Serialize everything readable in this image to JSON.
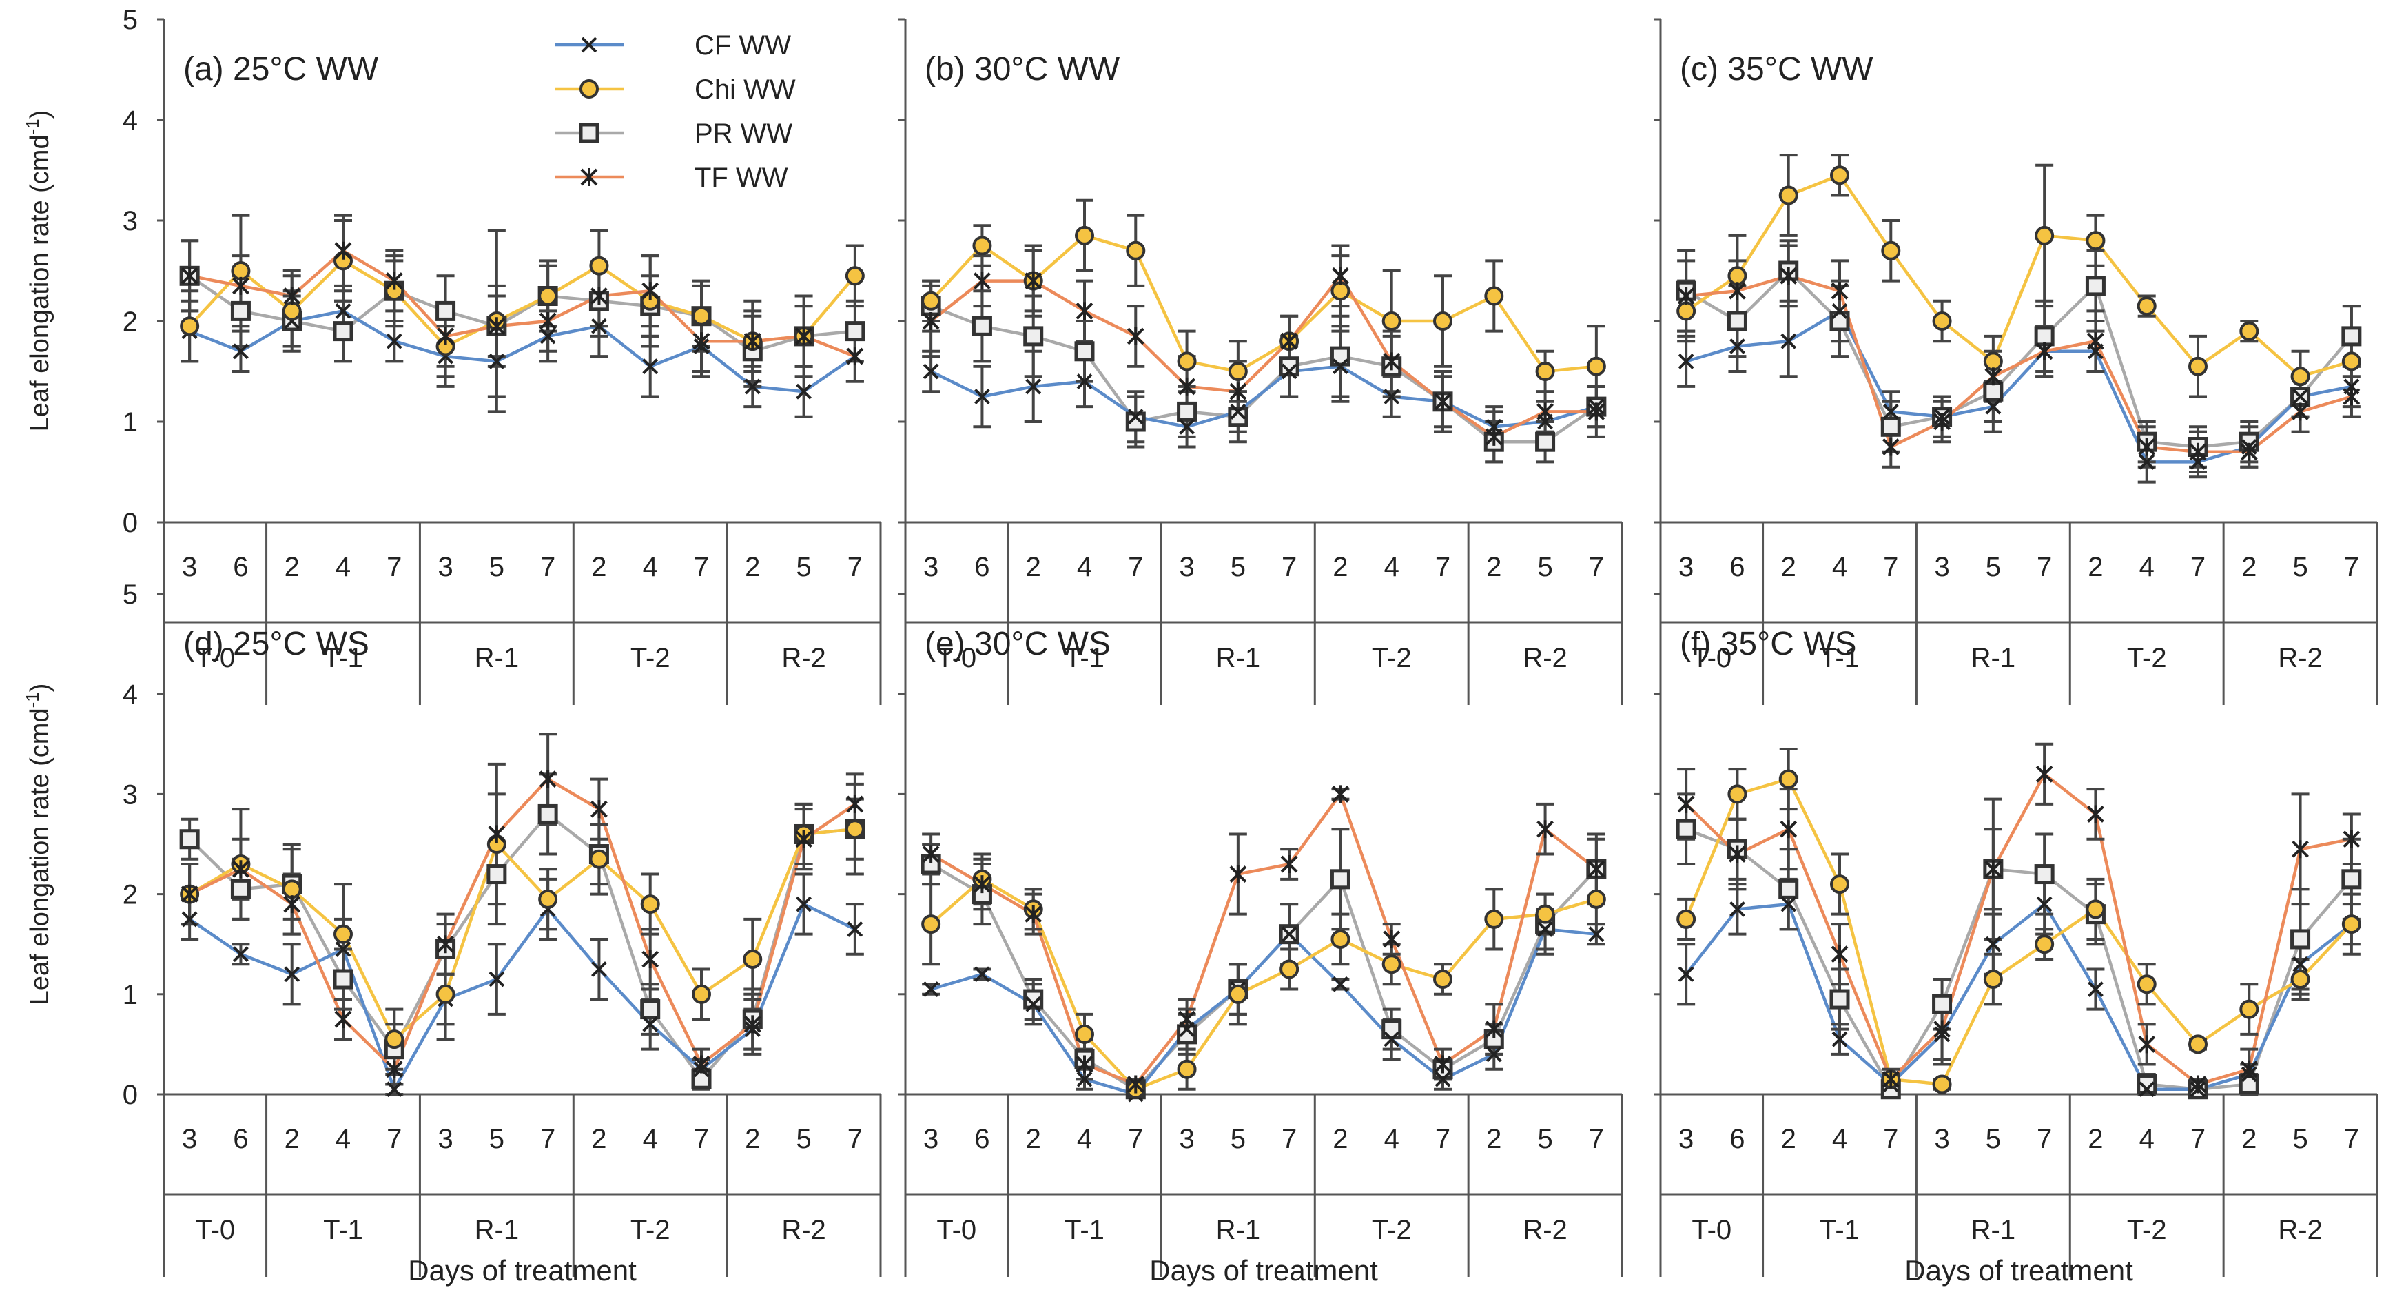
{
  "figure": {
    "y_axis_label": "Leaf elongation rate (cmd",
    "y_axis_label_sup": "-1",
    "y_axis_label_end": ")",
    "x_axis_label": "Days of treatment",
    "x_days": [
      "3",
      "6",
      "2",
      "4",
      "7",
      "3",
      "5",
      "7",
      "2",
      "4",
      "7",
      "2",
      "5",
      "7"
    ],
    "phases": [
      "T-0",
      "T-1",
      "R-1",
      "T-2",
      "R-2"
    ],
    "y_ticks": [
      "0",
      "1",
      "2",
      "3",
      "4",
      "5"
    ]
  },
  "legend": [
    {
      "label": "CF WW",
      "color": "#5b8bc9",
      "marker": "x"
    },
    {
      "label": "Chi WW",
      "color": "#f5c342",
      "marker": "circle"
    },
    {
      "label": "PR WW",
      "color": "#a9a9a9",
      "marker": "square"
    },
    {
      "label": "TF WW",
      "color": "#ec8a5a",
      "marker": "star"
    }
  ],
  "chart_data": [
    {
      "type": "line",
      "title": "(a) 25°C WW",
      "xlabel": "Days of treatment",
      "ylabel": "Leaf elongation rate (cmd-1)",
      "ylim": [
        0,
        5
      ],
      "categories": [
        "T-0 3",
        "T-0 6",
        "T-1 2",
        "T-1 4",
        "T-1 7",
        "R-1 3",
        "R-1 5",
        "R-1 7",
        "T-2 2",
        "T-2 4",
        "T-2 7",
        "R-2 2",
        "R-2 5",
        "R-2 7"
      ],
      "series": [
        {
          "name": "CF",
          "values": [
            1.9,
            1.7,
            2.0,
            2.1,
            1.8,
            1.65,
            1.6,
            1.85,
            1.95,
            1.55,
            1.75,
            1.35,
            1.3,
            1.65
          ],
          "errors": [
            0.3,
            0.2,
            0.25,
            0.2,
            0.2,
            0.3,
            0.35,
            0.25,
            0.3,
            0.3,
            0.3,
            0.2,
            0.25,
            0.25
          ]
        },
        {
          "name": "Chi",
          "values": [
            1.95,
            2.5,
            2.1,
            2.6,
            2.3,
            1.75,
            2.0,
            2.25,
            2.55,
            2.2,
            2.05,
            1.8,
            1.85,
            2.45
          ],
          "errors": [
            0.35,
            0.55,
            0.35,
            0.4,
            0.35,
            0.3,
            0.9,
            0.35,
            0.35,
            0.45,
            0.35,
            0.4,
            0.4,
            0.3
          ]
        },
        {
          "name": "PR",
          "values": [
            2.45,
            2.1,
            2.0,
            1.9,
            2.3,
            2.1,
            1.95,
            2.25,
            2.2,
            2.15,
            2.05,
            1.7,
            1.85,
            1.9
          ],
          "errors": [
            0.35,
            0.35,
            0.3,
            0.3,
            0.3,
            0.35,
            0.4,
            0.3,
            0.35,
            0.3,
            0.3,
            0.35,
            0.3,
            0.3
          ]
        },
        {
          "name": "TF",
          "values": [
            2.45,
            2.35,
            2.25,
            2.7,
            2.4,
            1.85,
            1.95,
            2.0,
            2.25,
            2.3,
            1.8,
            1.8,
            1.85,
            1.65
          ],
          "errors": [
            0.35,
            0.3,
            0.25,
            0.35,
            0.3,
            0.3,
            0.3,
            0.3,
            0.3,
            0.35,
            0.3,
            0.3,
            0.3,
            0.25
          ]
        }
      ]
    },
    {
      "type": "line",
      "title": "(b) 30°C WW",
      "xlabel": "Days of treatment",
      "ylabel": "Leaf elongation rate (cmd-1)",
      "ylim": [
        0,
        5
      ],
      "categories": [
        "T-0 3",
        "T-0 6",
        "T-1 2",
        "T-1 4",
        "T-1 7",
        "R-1 3",
        "R-1 5",
        "R-1 7",
        "T-2 2",
        "T-2 4",
        "T-2 7",
        "R-2 2",
        "R-2 5",
        "R-2 7"
      ],
      "series": [
        {
          "name": "CF",
          "values": [
            1.5,
            1.25,
            1.35,
            1.4,
            1.05,
            0.95,
            1.1,
            1.5,
            1.55,
            1.25,
            1.2,
            0.95,
            1.0,
            1.15
          ],
          "errors": [
            0.2,
            0.3,
            0.35,
            0.25,
            0.25,
            0.2,
            0.2,
            0.25,
            0.35,
            0.2,
            0.25,
            0.2,
            0.2,
            0.2
          ]
        },
        {
          "name": "Chi",
          "values": [
            2.2,
            2.75,
            2.4,
            2.85,
            2.7,
            1.6,
            1.5,
            1.8,
            2.3,
            2.0,
            2.0,
            2.25,
            1.5,
            1.55
          ],
          "errors": [
            0.2,
            0.2,
            0.3,
            0.35,
            0.35,
            0.3,
            0.3,
            0.25,
            0.35,
            0.5,
            0.45,
            0.35,
            0.2,
            0.4
          ]
        },
        {
          "name": "PR",
          "values": [
            2.15,
            1.95,
            1.85,
            1.7,
            1.0,
            1.1,
            1.05,
            1.55,
            1.65,
            1.55,
            1.2,
            0.8,
            0.8,
            1.15
          ],
          "errors": [
            0.25,
            0.35,
            0.4,
            0.3,
            0.25,
            0.25,
            0.25,
            0.3,
            0.4,
            0.3,
            0.3,
            0.2,
            0.2,
            0.2
          ]
        },
        {
          "name": "TF",
          "values": [
            2.0,
            2.4,
            2.4,
            2.1,
            1.85,
            1.35,
            1.3,
            1.8,
            2.45,
            1.6,
            1.2,
            0.85,
            1.1,
            1.1
          ],
          "errors": [
            0.35,
            0.25,
            0.35,
            0.3,
            0.3,
            0.3,
            0.3,
            0.25,
            0.3,
            0.3,
            0.3,
            0.25,
            0.2,
            0.25
          ]
        }
      ]
    },
    {
      "type": "line",
      "title": "(c) 35°C WW",
      "xlabel": "Days of treatment",
      "ylabel": "Leaf elongation rate (cmd-1)",
      "ylim": [
        0,
        5
      ],
      "categories": [
        "T-0 3",
        "T-0 6",
        "T-1 2",
        "T-1 4",
        "T-1 7",
        "R-1 3",
        "R-1 5",
        "R-1 7",
        "T-2 2",
        "T-2 4",
        "T-2 7",
        "R-2 2",
        "R-2 5",
        "R-2 7"
      ],
      "series": [
        {
          "name": "CF",
          "values": [
            1.6,
            1.75,
            1.8,
            2.1,
            1.1,
            1.05,
            1.15,
            1.7,
            1.7,
            0.6,
            0.6,
            0.75,
            1.25,
            1.35
          ],
          "errors": [
            0.25,
            0.25,
            0.35,
            0.3,
            0.2,
            0.2,
            0.25,
            0.25,
            0.2,
            0.2,
            0.15,
            0.2,
            0.2,
            0.2
          ]
        },
        {
          "name": "Chi",
          "values": [
            2.1,
            2.45,
            3.25,
            3.45,
            2.7,
            2.0,
            1.6,
            2.85,
            2.8,
            2.15,
            1.55,
            1.9,
            1.45,
            1.6
          ],
          "errors": [
            0.3,
            0.4,
            0.4,
            0.2,
            0.3,
            0.2,
            0.25,
            0.7,
            0.25,
            0.1,
            0.3,
            0.1,
            0.25,
            0.55
          ]
        },
        {
          "name": "PR",
          "values": [
            2.3,
            2.0,
            2.5,
            2.0,
            0.95,
            1.05,
            1.3,
            1.85,
            2.35,
            0.8,
            0.75,
            0.8,
            1.25,
            1.85
          ],
          "errors": [
            0.4,
            0.35,
            0.3,
            0.35,
            0.25,
            0.2,
            0.3,
            0.35,
            0.35,
            0.2,
            0.2,
            0.2,
            0.2,
            0.3
          ]
        },
        {
          "name": "TF",
          "values": [
            2.25,
            2.3,
            2.45,
            2.3,
            0.75,
            1.0,
            1.45,
            1.7,
            1.8,
            0.75,
            0.7,
            0.7,
            1.1,
            1.25
          ],
          "errors": [
            0.35,
            0.3,
            0.3,
            0.3,
            0.2,
            0.2,
            0.25,
            0.25,
            0.3,
            0.2,
            0.2,
            0.15,
            0.2,
            0.2
          ]
        }
      ]
    },
    {
      "type": "line",
      "title": "(d) 25°C WS",
      "xlabel": "Days of treatment",
      "ylabel": "Leaf elongation rate (cmd-1)",
      "ylim": [
        0,
        5
      ],
      "categories": [
        "T-0 3",
        "T-0 6",
        "T-1 2",
        "T-1 4",
        "T-1 7",
        "R-1 3",
        "R-1 5",
        "R-1 7",
        "T-2 2",
        "T-2 4",
        "T-2 7",
        "R-2 2",
        "R-2 5",
        "R-2 7"
      ],
      "series": [
        {
          "name": "CF",
          "values": [
            1.75,
            1.4,
            1.2,
            1.45,
            0.05,
            0.95,
            1.15,
            1.85,
            1.25,
            0.7,
            0.25,
            0.65,
            1.9,
            1.65
          ],
          "errors": [
            0.2,
            0.1,
            0.3,
            0.3,
            0.05,
            0.25,
            0.35,
            0.3,
            0.3,
            0.25,
            0.1,
            0.2,
            0.3,
            0.25
          ]
        },
        {
          "name": "Chi",
          "values": [
            2.0,
            2.3,
            2.05,
            1.6,
            0.55,
            1.0,
            2.5,
            1.95,
            2.35,
            1.9,
            1.0,
            1.35,
            2.6,
            2.65
          ],
          "errors": [
            0.3,
            0.55,
            0.45,
            0.5,
            0.3,
            0.45,
            0.8,
            0.3,
            0.35,
            0.3,
            0.25,
            0.4,
            0.3,
            0.45
          ]
        },
        {
          "name": "PR",
          "values": [
            2.55,
            2.05,
            2.1,
            1.15,
            0.45,
            1.45,
            2.2,
            2.8,
            2.4,
            0.85,
            0.15,
            0.75,
            2.6,
            2.65
          ],
          "errors": [
            0.2,
            0.3,
            0.35,
            0.3,
            0.25,
            0.25,
            0.3,
            0.4,
            0.3,
            0.25,
            0.1,
            0.3,
            0.3,
            0.3
          ]
        },
        {
          "name": "TF",
          "values": [
            2.0,
            2.25,
            1.9,
            0.75,
            0.25,
            1.5,
            2.6,
            3.15,
            2.85,
            1.35,
            0.3,
            0.7,
            2.55,
            2.9
          ],
          "errors": [
            0.3,
            0.3,
            0.3,
            0.2,
            0.15,
            0.3,
            0.4,
            0.45,
            0.3,
            0.3,
            0.15,
            0.3,
            0.3,
            0.3
          ]
        }
      ]
    },
    {
      "type": "line",
      "title": "(e) 30°C WS",
      "xlabel": "Days of treatment",
      "ylabel": "Leaf elongation rate (cmd-1)",
      "ylim": [
        0,
        5
      ],
      "categories": [
        "T-0 3",
        "T-0 6",
        "T-1 2",
        "T-1 4",
        "T-1 7",
        "R-1 3",
        "R-1 5",
        "R-1 7",
        "T-2 2",
        "T-2 4",
        "T-2 7",
        "R-2 2",
        "R-2 5",
        "R-2 7"
      ],
      "series": [
        {
          "name": "CF",
          "values": [
            1.05,
            1.2,
            0.9,
            0.15,
            0.0,
            0.65,
            1.05,
            1.6,
            1.1,
            0.55,
            0.15,
            0.4,
            1.65,
            1.6
          ],
          "errors": [
            0.05,
            0.05,
            0.2,
            0.1,
            0.05,
            0.2,
            0.25,
            0.3,
            0.05,
            0.2,
            0.1,
            0.15,
            0.2,
            0.1
          ]
        },
        {
          "name": "Chi",
          "values": [
            1.7,
            2.15,
            1.85,
            0.6,
            0.05,
            0.25,
            1.0,
            1.25,
            1.55,
            1.3,
            1.15,
            1.75,
            1.8,
            1.95
          ],
          "errors": [
            0.4,
            0.25,
            0.2,
            0.2,
            0.05,
            0.2,
            0.3,
            0.2,
            0.25,
            0.2,
            0.15,
            0.3,
            0.2,
            0.25
          ]
        },
        {
          "name": "PR",
          "values": [
            2.3,
            2.0,
            0.95,
            0.35,
            0.05,
            0.6,
            1.05,
            1.6,
            2.15,
            0.65,
            0.25,
            0.55,
            1.7,
            2.25
          ],
          "errors": [
            0.2,
            0.3,
            0.2,
            0.2,
            0.05,
            0.2,
            0.25,
            0.3,
            0.5,
            0.2,
            0.1,
            0.15,
            0.3,
            0.3
          ]
        },
        {
          "name": "TF",
          "values": [
            2.4,
            2.1,
            1.8,
            0.3,
            0.1,
            0.75,
            2.2,
            2.3,
            3.0,
            1.55,
            0.3,
            0.65,
            2.65,
            2.25
          ],
          "errors": [
            0.2,
            0.25,
            0.2,
            0.15,
            0.05,
            0.2,
            0.4,
            0.15,
            0.05,
            0.15,
            0.15,
            0.25,
            0.25,
            0.35
          ]
        }
      ]
    },
    {
      "type": "line",
      "title": "(f) 35°C WS",
      "xlabel": "Days of treatment",
      "ylabel": "Leaf elongation rate (cmd-1)",
      "ylim": [
        0,
        5
      ],
      "categories": [
        "T-0 3",
        "T-0 6",
        "T-1 2",
        "T-1 4",
        "T-1 7",
        "R-1 3",
        "R-1 5",
        "R-1 7",
        "T-2 2",
        "T-2 4",
        "T-2 7",
        "R-2 2",
        "R-2 5",
        "R-2 7"
      ],
      "series": [
        {
          "name": "CF",
          "values": [
            1.2,
            1.85,
            1.9,
            0.55,
            0.1,
            0.6,
            1.5,
            1.9,
            1.05,
            0.05,
            0.05,
            0.2,
            1.3,
            1.7
          ],
          "errors": [
            0.3,
            0.25,
            0.25,
            0.15,
            0.05,
            0.3,
            0.3,
            0.3,
            0.2,
            0.05,
            0.05,
            0.1,
            0.3,
            0.3
          ]
        },
        {
          "name": "Chi",
          "values": [
            1.75,
            3.0,
            3.15,
            2.1,
            0.15,
            0.1,
            1.15,
            1.5,
            1.85,
            1.1,
            0.5,
            0.85,
            1.15,
            1.7
          ],
          "errors": [
            0.2,
            0.25,
            0.3,
            0.3,
            0.05,
            0.05,
            0.25,
            0.15,
            0.3,
            0.2,
            0.05,
            0.25,
            0.2,
            0.2
          ]
        },
        {
          "name": "PR",
          "values": [
            2.65,
            2.45,
            2.05,
            0.95,
            0.05,
            0.9,
            2.25,
            2.2,
            1.8,
            0.1,
            0.05,
            0.1,
            1.55,
            2.15
          ],
          "errors": [
            0.35,
            0.3,
            0.4,
            0.3,
            0.05,
            0.25,
            0.4,
            0.4,
            0.3,
            0.1,
            0.05,
            0.1,
            0.5,
            0.4
          ]
        },
        {
          "name": "TF",
          "values": [
            2.9,
            2.4,
            2.65,
            1.4,
            0.15,
            0.65,
            2.25,
            3.2,
            2.8,
            0.5,
            0.1,
            0.25,
            2.45,
            2.55
          ],
          "errors": [
            0.35,
            0.35,
            0.4,
            0.3,
            0.1,
            0.3,
            0.7,
            0.3,
            0.25,
            0.2,
            0.05,
            0.2,
            0.55,
            0.25
          ]
        }
      ]
    }
  ]
}
